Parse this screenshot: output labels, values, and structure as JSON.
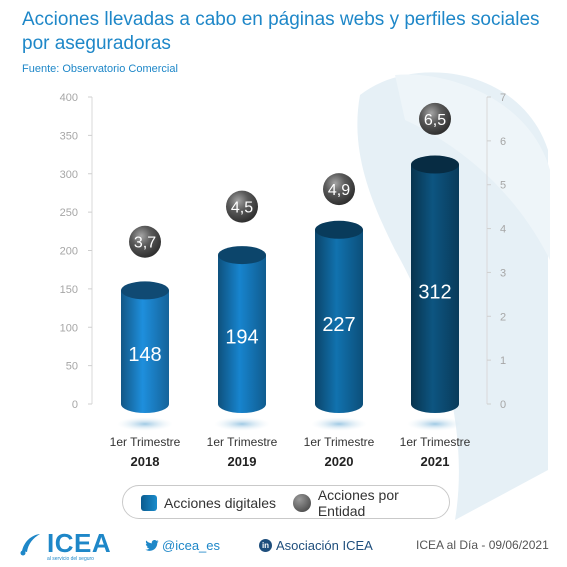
{
  "title": "Acciones llevadas a cabo en páginas webs y perfiles sociales por aseguradoras",
  "source": "Fuente: Observatorio Comercial",
  "chart_data": {
    "type": "bar",
    "categories": [
      {
        "line1": "1er Trimestre",
        "line2": "2018"
      },
      {
        "line1": "1er Trimestre",
        "line2": "2019"
      },
      {
        "line1": "1er Trimestre",
        "line2": "2020"
      },
      {
        "line1": "1er Trimestre",
        "line2": "2021"
      }
    ],
    "series": [
      {
        "name": "Acciones digitales",
        "axis": "left",
        "mark": "cylinder-bar",
        "values": [
          148,
          194,
          227,
          312
        ],
        "value_labels": [
          "148",
          "194",
          "227",
          "312"
        ],
        "colors": [
          "#1a7cc0",
          "#1473b3",
          "#0f6398",
          "#0b4a70"
        ]
      },
      {
        "name": "Acciones por Entidad",
        "axis": "right",
        "mark": "sphere",
        "values": [
          3.7,
          4.5,
          4.9,
          6.5
        ],
        "value_labels": [
          "3,7",
          "4,5",
          "4,9",
          "6,5"
        ],
        "color": "#4a4a4a"
      }
    ],
    "y_left": {
      "min": 0,
      "max": 400,
      "ticks": [
        "0",
        "50",
        "100",
        "150",
        "200",
        "250",
        "300",
        "350",
        "400"
      ]
    },
    "y_right": {
      "min": 0,
      "max": 7,
      "ticks": [
        "0",
        "1",
        "2",
        "3",
        "4",
        "5",
        "6",
        "7"
      ]
    },
    "grid": false,
    "legend": "bottom"
  },
  "footer": {
    "logo_word": "ICEA",
    "logo_sub": "al servicio del seguro",
    "twitter": "@icea_es",
    "linkedin_icon": "in",
    "linkedin": "Asociación ICEA",
    "credit": "ICEA al Día - 09/06/2021"
  }
}
